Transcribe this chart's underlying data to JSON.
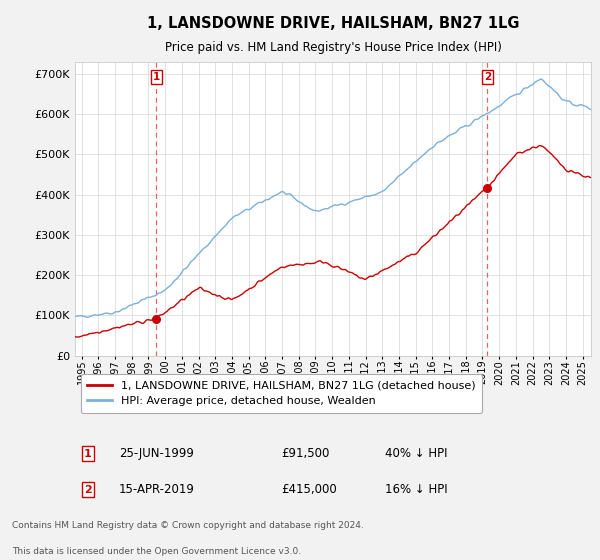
{
  "title": "1, LANSDOWNE DRIVE, HAILSHAM, BN27 1LG",
  "subtitle": "Price paid vs. HM Land Registry's House Price Index (HPI)",
  "ylim": [
    0,
    730000
  ],
  "xlim_start": 1994.6,
  "xlim_end": 2025.5,
  "hpi_color": "#7ab0db",
  "price_color": "#cc0000",
  "background_color": "#f2f2f2",
  "plot_bg_color": "#ffffff",
  "sale1_x": 1999.48,
  "sale1_y": 91500,
  "sale2_x": 2019.29,
  "sale2_y": 415000,
  "legend_line1": "1, LANSDOWNE DRIVE, HAILSHAM, BN27 1LG (detached house)",
  "legend_line2": "HPI: Average price, detached house, Wealden",
  "annotation1_date": "25-JUN-1999",
  "annotation1_price": "£91,500",
  "annotation1_hpi": "40% ↓ HPI",
  "annotation2_date": "15-APR-2019",
  "annotation2_price": "£415,000",
  "annotation2_hpi": "16% ↓ HPI",
  "footnote1": "Contains HM Land Registry data © Crown copyright and database right 2024.",
  "footnote2": "This data is licensed under the Open Government Licence v3.0."
}
